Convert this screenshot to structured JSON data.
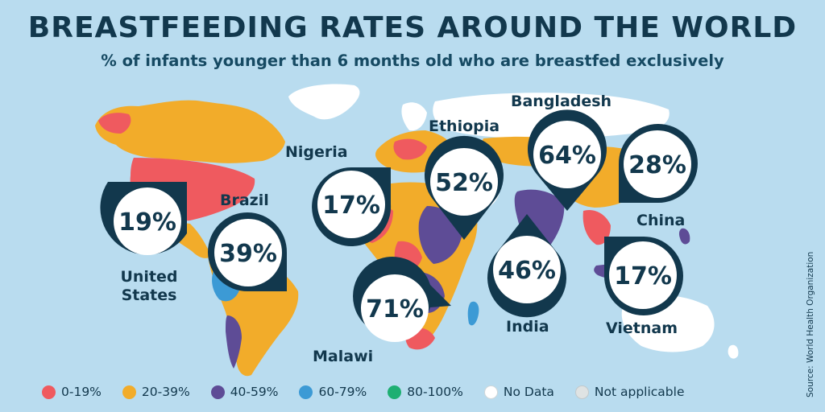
{
  "title": "BREASTFEEDING RATES AROUND THE WORLD",
  "subtitle": "% of infants younger than 6 months old who are breastfed exclusively",
  "source": "Source: World Health Organization",
  "colors": {
    "ocean": "#b9dcef",
    "dark": "#12384d",
    "bin_0_19": "#ef5a5f",
    "bin_20_39": "#f2ac2a",
    "bin_40_59": "#5e4c96",
    "bin_60_79": "#3c9ad5",
    "bin_80_100": "#1eaf72",
    "no_data": "#ffffff",
    "not_applicable": "#dfe3e3"
  },
  "legend": [
    {
      "label": "0-19%",
      "color": "#ef5a5f",
      "icon": "circle"
    },
    {
      "label": "20-39%",
      "color": "#f2ac2a",
      "icon": "circle"
    },
    {
      "label": "40-59%",
      "color": "#5e4c96",
      "icon": "circle"
    },
    {
      "label": "60-79%",
      "color": "#3c9ad5",
      "icon": "circle"
    },
    {
      "label": "80-100%",
      "color": "#1eaf72",
      "icon": "circle"
    },
    {
      "label": "No Data",
      "color": "#ffffff",
      "icon": "circle"
    },
    {
      "label": "Not applicable",
      "color": "#dfe3e3",
      "icon": "circle"
    }
  ],
  "callouts": [
    {
      "country": "United States",
      "label_lines": [
        "United",
        "States"
      ],
      "value": "19%",
      "percent": 19
    },
    {
      "country": "Brazil",
      "label_lines": [
        "Brazil"
      ],
      "value": "39%",
      "percent": 39
    },
    {
      "country": "Nigeria",
      "label_lines": [
        "Nigeria"
      ],
      "value": "17%",
      "percent": 17
    },
    {
      "country": "Ethiopia",
      "label_lines": [
        "Ethiopia"
      ],
      "value": "52%",
      "percent": 52
    },
    {
      "country": "Malawi",
      "label_lines": [
        "Malawi"
      ],
      "value": "71%",
      "percent": 71
    },
    {
      "country": "Bangladesh",
      "label_lines": [
        "Bangladesh"
      ],
      "value": "64%",
      "percent": 64
    },
    {
      "country": "India",
      "label_lines": [
        "India"
      ],
      "value": "46%",
      "percent": 46
    },
    {
      "country": "China",
      "label_lines": [
        "China"
      ],
      "value": "28%",
      "percent": 28
    },
    {
      "country": "Vietnam",
      "label_lines": [
        "Vietnam"
      ],
      "value": "17%",
      "percent": 17
    }
  ]
}
